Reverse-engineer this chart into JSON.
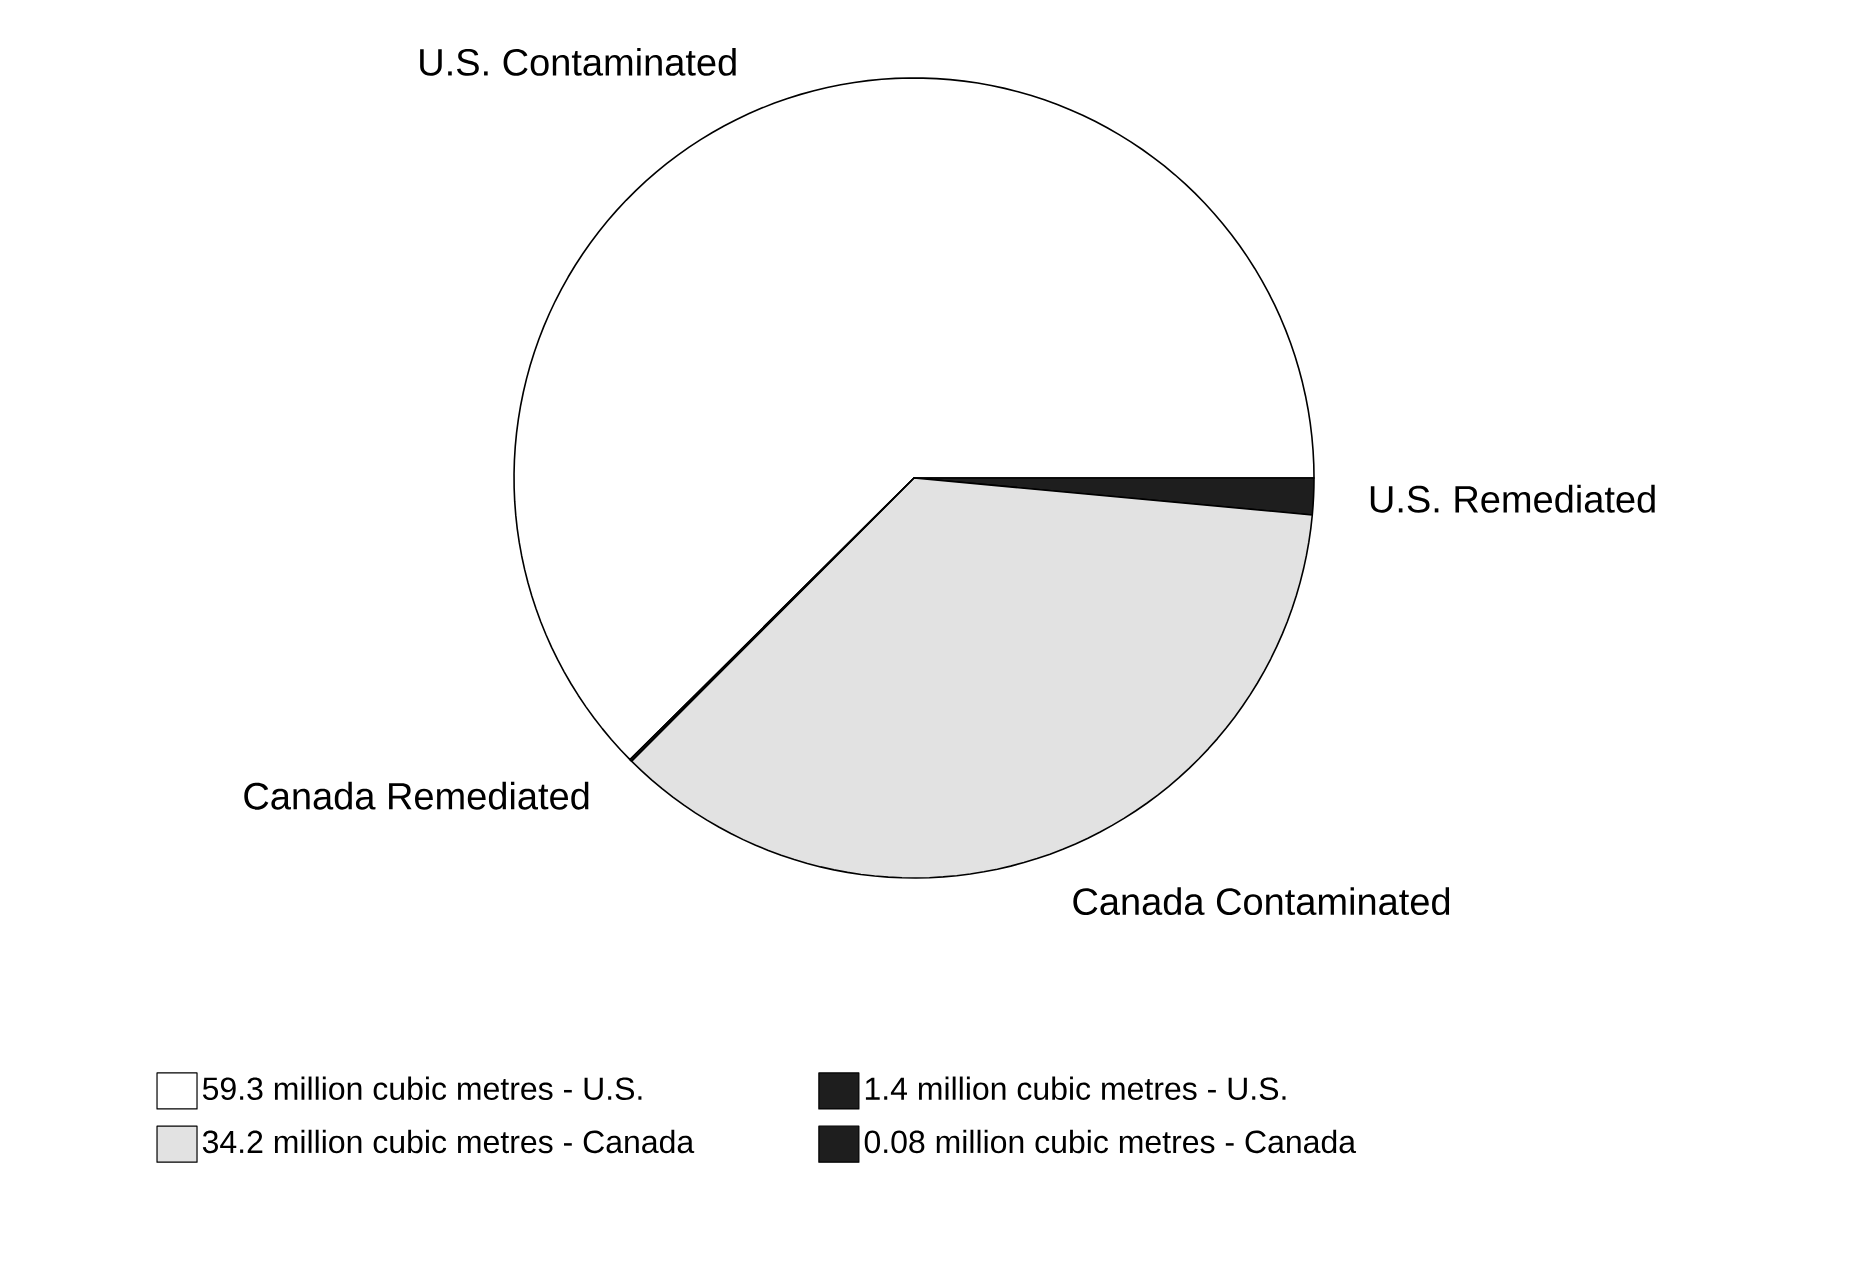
{
  "chart_data": {
    "type": "pie",
    "categories": [
      "59.3 million cubic metres - U.S.",
      "1.4 million cubic metres - U.S.",
      "34.2 million cubic metres - Canada",
      "0.08 million cubic metres - Canada"
    ],
    "values": [
      59.3,
      1.4,
      34.2,
      0.08
    ],
    "colors": [
      "#ffffff",
      "#1e1e1e",
      "#e2e2e2",
      "#1e1e1e"
    ],
    "annotations": [
      "U.S. Contaminated",
      "U.S. Remediated",
      "Canada Contaminated",
      "Canada Remediated"
    ],
    "legend": "bottom"
  }
}
